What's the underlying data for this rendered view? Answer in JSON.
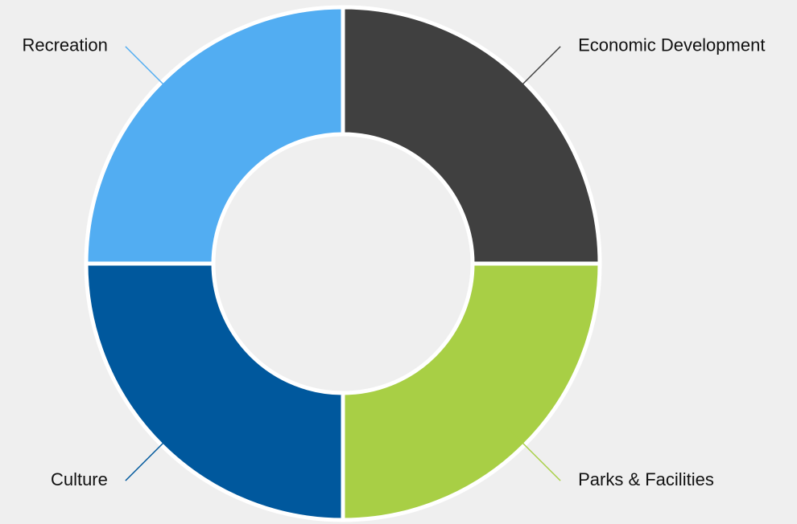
{
  "chart_data": {
    "type": "pie",
    "variant": "donut",
    "title": "",
    "slices": [
      {
        "label": "Economic Development",
        "value": 25,
        "color": "#404040"
      },
      {
        "label": "Parks & Facilities",
        "value": 25,
        "color": "#a8cf45"
      },
      {
        "label": "Culture",
        "value": 25,
        "color": "#00589d"
      },
      {
        "label": "Recreation",
        "value": 25,
        "color": "#52adf2"
      }
    ],
    "legend": "none"
  }
}
